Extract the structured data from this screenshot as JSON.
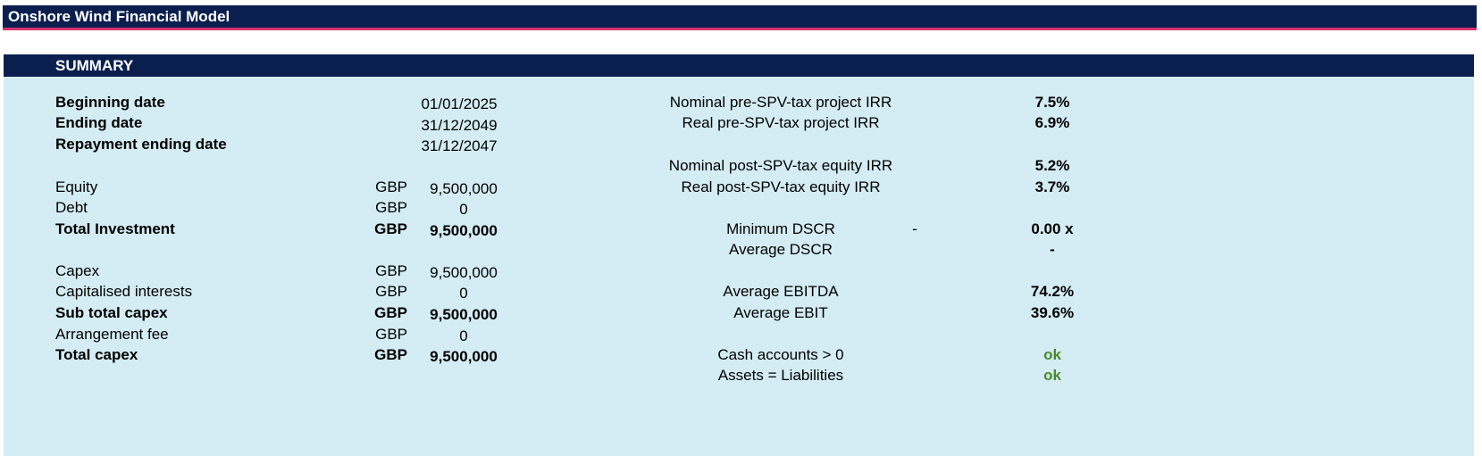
{
  "app_title": "Onshore Wind Financial Model",
  "summary": {
    "title": "SUMMARY",
    "dates": [
      {
        "label": "Beginning date",
        "value": "01/01/2025"
      },
      {
        "label": "Ending date",
        "value": "31/12/2049"
      },
      {
        "label": "Repayment ending date",
        "value": "31/12/2047"
      }
    ],
    "investment": [
      {
        "label": "Equity",
        "unit": "GBP",
        "value": "9,500,000",
        "bold": false
      },
      {
        "label": "Debt",
        "unit": "GBP",
        "value": "0",
        "bold": false
      },
      {
        "label": "Total Investment",
        "unit": "GBP",
        "value": "9,500,000",
        "bold": true
      }
    ],
    "capex": [
      {
        "label": "Capex",
        "unit": "GBP",
        "value": "9,500,000",
        "bold": false
      },
      {
        "label": "Capitalised interests",
        "unit": "GBP",
        "value": "0",
        "bold": false
      },
      {
        "label": "Sub total capex",
        "unit": "GBP",
        "value": "9,500,000",
        "bold": true
      },
      {
        "label": "Arrangement fee",
        "unit": "GBP",
        "value": "0",
        "bold": false
      },
      {
        "label": "Total capex",
        "unit": "GBP",
        "value": "9,500,000",
        "bold": true
      }
    ],
    "irr": [
      {
        "label": "Nominal pre-SPV-tax project IRR",
        "value": "7.5%"
      },
      {
        "label": "Real pre-SPV-tax project IRR",
        "value": "6.9%"
      },
      {
        "label": "Nominal post-SPV-tax equity IRR",
        "value": "5.2%"
      },
      {
        "label": "Real post-SPV-tax equity IRR",
        "value": "3.7%"
      }
    ],
    "dscr": [
      {
        "label": "Minimum DSCR",
        "extra": "-",
        "value": "0.00 x"
      },
      {
        "label": "Average DSCR",
        "extra": "",
        "value": "-"
      }
    ],
    "margins": [
      {
        "label": "Average EBITDA",
        "value": "74.2%"
      },
      {
        "label": "Average EBIT",
        "value": "39.6%"
      }
    ],
    "checks": [
      {
        "label": "Cash accounts > 0",
        "value": "ok"
      },
      {
        "label": "Assets = Liabilities",
        "value": "ok"
      }
    ]
  }
}
